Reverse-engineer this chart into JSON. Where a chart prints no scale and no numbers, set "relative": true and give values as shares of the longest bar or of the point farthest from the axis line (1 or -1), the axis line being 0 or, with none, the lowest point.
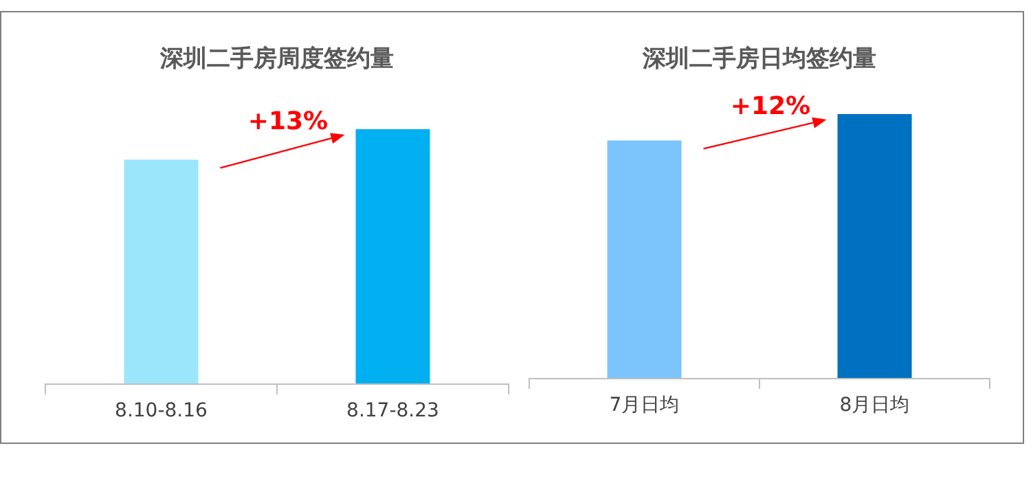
{
  "chart_data": [
    {
      "type": "bar",
      "title": "深圳二手房周度签约量",
      "categories": [
        "8.10-8.16",
        "8.17-8.23"
      ],
      "values": [
        0.88,
        1
      ],
      "colors": [
        "#9be6fb",
        "#00b0f0"
      ],
      "relative": true,
      "annotations": [
        "+13%"
      ]
    },
    {
      "type": "bar",
      "title": "深圳二手房日均签约量",
      "categories": [
        "7月日均",
        "8月日均"
      ],
      "values": [
        0.9,
        1
      ],
      "colors": [
        "#7cc5fc",
        "#0070c0"
      ],
      "relative": true,
      "annotations": [
        "+12%"
      ]
    }
  ]
}
